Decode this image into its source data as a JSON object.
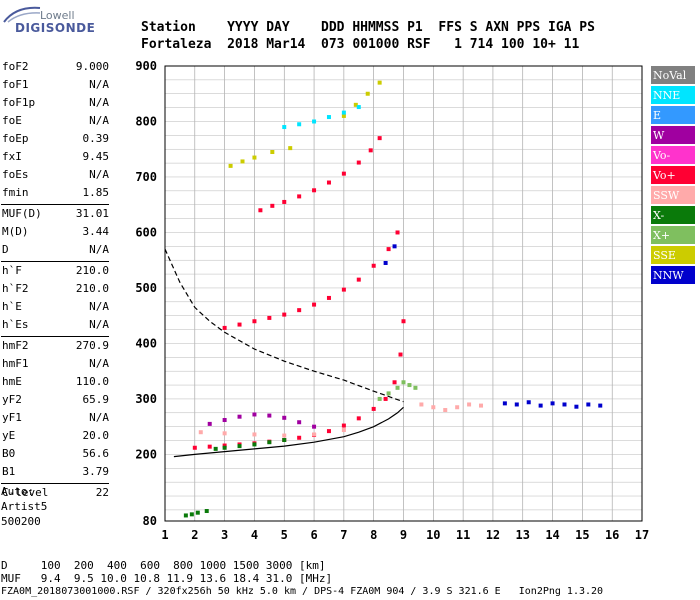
{
  "logo": {
    "top": "Lowell",
    "bottom": "DIGISONDE"
  },
  "header": {
    "line1": "Station    YYYY DAY    DDD HHMMSS P1  FFS S AXN PPS IGA PS",
    "line2": "Fortaleza  2018 Mar14  073 001000 RSF   1 714 100 10+ 11"
  },
  "params": [
    {
      "label": "foF2",
      "value": "9.000"
    },
    {
      "label": "foF1",
      "value": "N/A"
    },
    {
      "label": "foF1p",
      "value": "N/A"
    },
    {
      "label": "foE",
      "value": "N/A"
    },
    {
      "label": "foEp",
      "value": "0.39"
    },
    {
      "label": "fxI",
      "value": "9.45"
    },
    {
      "label": "foEs",
      "value": "N/A"
    },
    {
      "label": "fmin",
      "value": "1.85"
    },
    {
      "sep": true
    },
    {
      "label": "MUF(D)",
      "value": "31.01"
    },
    {
      "label": "M(D)",
      "value": "3.44"
    },
    {
      "label": "D",
      "value": "N/A"
    },
    {
      "sep": true
    },
    {
      "label": "h`F",
      "value": "210.0"
    },
    {
      "label": "h`F2",
      "value": "210.0"
    },
    {
      "label": "h`E",
      "value": "N/A"
    },
    {
      "label": "h`Es",
      "value": "N/A"
    },
    {
      "sep": true
    },
    {
      "label": "hmF2",
      "value": "270.9"
    },
    {
      "label": "hmF1",
      "value": "N/A"
    },
    {
      "label": "hmE",
      "value": "110.0"
    },
    {
      "label": "yF2",
      "value": "65.9"
    },
    {
      "label": "yF1",
      "value": "N/A"
    },
    {
      "label": "yE",
      "value": "20.0"
    },
    {
      "label": "B0",
      "value": "56.6"
    },
    {
      "label": "B1",
      "value": "3.79"
    },
    {
      "sep": true
    },
    {
      "label": "C-level",
      "value": "22"
    }
  ],
  "auto": {
    "line1": "Auto:",
    "line2": "Artist5",
    "line3": "500200"
  },
  "legend": [
    {
      "label": "NoVal",
      "color": "#808080"
    },
    {
      "label": "NNE",
      "color": "#00e5ff"
    },
    {
      "label": "E",
      "color": "#3399ff"
    },
    {
      "label": "W",
      "color": "#a000a0"
    },
    {
      "label": "Vo-",
      "color": "#ff33cc"
    },
    {
      "label": "Vo+",
      "color": "#ff0033"
    },
    {
      "label": "SSW",
      "color": "#ffaaaa"
    },
    {
      "label": "X-",
      "color": "#0a7a0a"
    },
    {
      "label": "X+",
      "color": "#7fbf5f"
    },
    {
      "label": "SSE",
      "color": "#cccc00"
    },
    {
      "label": "NNW",
      "color": "#0000cc"
    }
  ],
  "footer": {
    "line1": "D     100  200  400  600  800 1000 1500 3000 [km]",
    "line2": "MUF   9.4  9.5 10.0 10.8 11.9 13.6 18.4 31.0 [MHz]",
    "line3": "FZA0M_2018073001000.RSF / 320fx256h 50 kHz 5.0 km / DPS-4 FZA0M 904 / 3.9 S 321.6 E   Ion2Png 1.3.20"
  },
  "chart_data": {
    "type": "scatter",
    "xlim": [
      1,
      17
    ],
    "ylim": [
      80,
      900
    ],
    "x_ticks": [
      1,
      2,
      3,
      4,
      5,
      6,
      7,
      8,
      9,
      10,
      11,
      12,
      13,
      14,
      15,
      16,
      17
    ],
    "y_ticks": [
      80,
      200,
      300,
      400,
      500,
      600,
      700,
      800,
      900
    ],
    "grid": true,
    "series": [
      {
        "name": "Vo+",
        "color": "#ff0033",
        "x": [
          2.0,
          2.5,
          3.0,
          3.5,
          4.0,
          4.5,
          5.0,
          5.5,
          6.0,
          6.5,
          7.0,
          7.5,
          8.0,
          8.4,
          8.7,
          8.9,
          9.0
        ],
        "y": [
          212,
          214,
          216,
          218,
          220,
          223,
          226,
          230,
          235,
          242,
          252,
          265,
          282,
          300,
          330,
          380,
          440
        ]
      },
      {
        "name": "Vo+",
        "color": "#ff0033",
        "x": [
          3.0,
          3.5,
          4.0,
          4.5,
          5.0,
          5.5,
          6.0,
          6.5,
          7.0,
          7.5,
          8.0,
          8.5,
          8.8
        ],
        "y": [
          428,
          434,
          440,
          446,
          452,
          460,
          470,
          482,
          497,
          515,
          540,
          570,
          600
        ]
      },
      {
        "name": "Vo+",
        "color": "#ff0033",
        "x": [
          4.2,
          4.6,
          5.0,
          5.5,
          6.0,
          6.5,
          7.0,
          7.5,
          7.9,
          8.2
        ],
        "y": [
          640,
          648,
          655,
          665,
          676,
          690,
          706,
          726,
          748,
          770
        ]
      },
      {
        "name": "SSW",
        "color": "#ffaaaa",
        "x": [
          2.2,
          3.0,
          4.0,
          5.0,
          6.0,
          7.0,
          9.6,
          10.0,
          10.4,
          10.8,
          11.2,
          11.6
        ],
        "y": [
          240,
          238,
          236,
          234,
          236,
          244,
          290,
          285,
          280,
          285,
          290,
          288
        ]
      },
      {
        "name": "W",
        "color": "#a000a0",
        "x": [
          2.5,
          3.0,
          3.5,
          4.0,
          4.5,
          5.0,
          5.5,
          6.0
        ],
        "y": [
          255,
          262,
          268,
          272,
          270,
          266,
          258,
          250
        ]
      },
      {
        "name": "X-",
        "color": "#0a7a0a",
        "x": [
          1.7,
          1.9,
          2.1,
          2.4,
          2.7,
          3.0,
          3.5,
          4.0,
          4.5,
          5.0
        ],
        "y": [
          90,
          92,
          95,
          98,
          210,
          212,
          215,
          218,
          222,
          226
        ]
      },
      {
        "name": "NNW",
        "color": "#0000cc",
        "x": [
          12.4,
          12.8,
          13.2,
          13.6,
          14.0,
          14.4,
          14.8,
          15.2,
          15.6,
          8.4,
          8.7
        ],
        "y": [
          292,
          290,
          294,
          288,
          292,
          290,
          286,
          290,
          288,
          545,
          575
        ]
      },
      {
        "name": "SSE",
        "color": "#cccc00",
        "x": [
          3.2,
          3.6,
          4.0,
          4.6,
          5.2,
          7.0,
          7.4,
          7.8,
          8.2
        ],
        "y": [
          720,
          728,
          735,
          745,
          752,
          810,
          830,
          850,
          870
        ]
      },
      {
        "name": "NNE",
        "color": "#00e5ff",
        "x": [
          5.0,
          5.5,
          6.0,
          6.5,
          7.0,
          7.5
        ],
        "y": [
          790,
          795,
          800,
          808,
          816,
          826
        ]
      },
      {
        "name": "X+",
        "color": "#7fbf5f",
        "x": [
          8.2,
          8.5,
          8.8,
          9.0,
          9.2,
          9.4
        ],
        "y": [
          300,
          310,
          320,
          330,
          325,
          320
        ]
      }
    ],
    "curves": [
      {
        "name": "profile",
        "style": "solid",
        "x": [
          1.3,
          2.0,
          3.0,
          4.0,
          5.0,
          6.0,
          7.0,
          7.5,
          8.0,
          8.5,
          8.8,
          9.0
        ],
        "y": [
          196,
          200,
          205,
          210,
          215,
          222,
          232,
          240,
          250,
          264,
          275,
          285
        ]
      },
      {
        "name": "MUF",
        "style": "dashed",
        "x": [
          1.0,
          1.5,
          2.0,
          2.5,
          3.0,
          4.0,
          5.0,
          6.0,
          7.0,
          8.0,
          9.0
        ],
        "y": [
          570,
          510,
          465,
          440,
          420,
          390,
          368,
          350,
          334,
          314,
          295
        ]
      }
    ]
  }
}
